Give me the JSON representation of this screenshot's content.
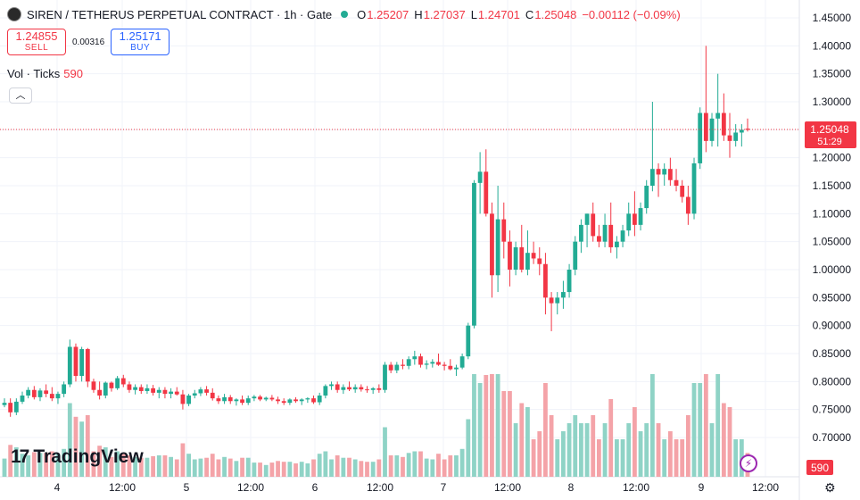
{
  "header": {
    "symbol": "SIREN / TETHERUS PERPETUAL CONTRACT · 1h · Gate",
    "o_label": "O",
    "o": "1.25207",
    "h_label": "H",
    "h": "1.27037",
    "l_label": "L",
    "l": "1.24701",
    "c_label": "C",
    "c": "1.25048",
    "change": "−0.00112 (−0.09%)"
  },
  "trade": {
    "sell_price": "1.24855",
    "sell_label": "SELL",
    "spread": "0.00316",
    "buy_price": "1.25171",
    "buy_label": "BUY"
  },
  "volume_legend": {
    "label": "Vol · Ticks",
    "value": "590"
  },
  "last_price": {
    "price": "1.25048",
    "countdown": "51:29"
  },
  "volume_badge": "590",
  "logo_text": "TradingView",
  "icons": {
    "collapse": "chevron-up-icon",
    "logo": "tradingview-icon",
    "bolt": "lightning-icon",
    "settings": "gear-icon"
  },
  "colors": {
    "up": "#22ab94",
    "down": "#f23645",
    "vol_up": "#8fd3c6",
    "vol_down": "#f4a3a8",
    "grid": "#f0f3fa"
  },
  "chart_data": {
    "type": "candlestick",
    "timeframe": "1h",
    "y_ticks": [
      "1.45000",
      "1.40000",
      "1.35000",
      "1.30000",
      "1.25000",
      "1.20000",
      "1.15000",
      "1.10000",
      "1.05000",
      "1.00000",
      "0.95000",
      "0.90000",
      "0.85000",
      "0.80000",
      "0.75000",
      "0.70000"
    ],
    "ylim": [
      0.67,
      1.47
    ],
    "x_ticks": [
      "4",
      "12:00",
      "5",
      "12:00",
      "6",
      "12:00",
      "7",
      "12:00",
      "8",
      "12:00",
      "9",
      "12:00"
    ],
    "candles": [
      [
        0.758,
        0.77,
        0.754,
        0.762
      ],
      [
        0.762,
        0.77,
        0.737,
        0.745
      ],
      [
        0.745,
        0.77,
        0.74,
        0.764
      ],
      [
        0.764,
        0.782,
        0.76,
        0.775
      ],
      [
        0.775,
        0.79,
        0.77,
        0.785
      ],
      [
        0.785,
        0.792,
        0.768,
        0.772
      ],
      [
        0.772,
        0.788,
        0.765,
        0.784
      ],
      [
        0.784,
        0.795,
        0.772,
        0.778
      ],
      [
        0.778,
        0.79,
        0.765,
        0.77
      ],
      [
        0.77,
        0.782,
        0.76,
        0.778
      ],
      [
        0.778,
        0.8,
        0.772,
        0.795
      ],
      [
        0.795,
        0.875,
        0.79,
        0.862
      ],
      [
        0.862,
        0.868,
        0.8,
        0.81
      ],
      [
        0.81,
        0.862,
        0.8,
        0.858
      ],
      [
        0.858,
        0.86,
        0.79,
        0.8
      ],
      [
        0.8,
        0.805,
        0.78,
        0.785
      ],
      [
        0.785,
        0.8,
        0.768,
        0.775
      ],
      [
        0.775,
        0.8,
        0.77,
        0.798
      ],
      [
        0.798,
        0.8,
        0.782,
        0.788
      ],
      [
        0.788,
        0.81,
        0.785,
        0.806
      ],
      [
        0.806,
        0.812,
        0.79,
        0.795
      ],
      [
        0.795,
        0.8,
        0.78,
        0.785
      ],
      [
        0.785,
        0.795,
        0.777,
        0.79
      ],
      [
        0.79,
        0.795,
        0.778,
        0.783
      ],
      [
        0.783,
        0.795,
        0.778,
        0.788
      ],
      [
        0.788,
        0.794,
        0.775,
        0.78
      ],
      [
        0.78,
        0.79,
        0.77,
        0.785
      ],
      [
        0.785,
        0.79,
        0.77,
        0.778
      ],
      [
        0.778,
        0.788,
        0.77,
        0.782
      ],
      [
        0.782,
        0.79,
        0.775,
        0.777
      ],
      [
        0.777,
        0.785,
        0.75,
        0.76
      ],
      [
        0.76,
        0.778,
        0.756,
        0.775
      ],
      [
        0.775,
        0.785,
        0.77,
        0.779
      ],
      [
        0.779,
        0.79,
        0.774,
        0.786
      ],
      [
        0.786,
        0.792,
        0.775,
        0.78
      ],
      [
        0.78,
        0.788,
        0.766,
        0.77
      ],
      [
        0.77,
        0.775,
        0.76,
        0.765
      ],
      [
        0.765,
        0.778,
        0.76,
        0.772
      ],
      [
        0.772,
        0.776,
        0.76,
        0.765
      ],
      [
        0.765,
        0.77,
        0.757,
        0.768
      ],
      [
        0.768,
        0.775,
        0.758,
        0.762
      ],
      [
        0.762,
        0.775,
        0.758,
        0.77
      ],
      [
        0.77,
        0.776,
        0.765,
        0.773
      ],
      [
        0.773,
        0.776,
        0.765,
        0.768
      ],
      [
        0.768,
        0.773,
        0.765,
        0.771
      ],
      [
        0.771,
        0.776,
        0.765,
        0.768
      ],
      [
        0.768,
        0.773,
        0.76,
        0.765
      ],
      [
        0.765,
        0.77,
        0.758,
        0.762
      ],
      [
        0.762,
        0.77,
        0.758,
        0.768
      ],
      [
        0.768,
        0.772,
        0.762,
        0.765
      ],
      [
        0.765,
        0.77,
        0.758,
        0.768
      ],
      [
        0.768,
        0.772,
        0.762,
        0.77
      ],
      [
        0.77,
        0.775,
        0.76,
        0.763
      ],
      [
        0.763,
        0.78,
        0.758,
        0.775
      ],
      [
        0.775,
        0.795,
        0.77,
        0.792
      ],
      [
        0.792,
        0.8,
        0.785,
        0.795
      ],
      [
        0.795,
        0.8,
        0.78,
        0.785
      ],
      [
        0.785,
        0.795,
        0.778,
        0.79
      ],
      [
        0.79,
        0.8,
        0.783,
        0.786
      ],
      [
        0.786,
        0.795,
        0.78,
        0.79
      ],
      [
        0.79,
        0.795,
        0.782,
        0.786
      ],
      [
        0.786,
        0.792,
        0.78,
        0.785
      ],
      [
        0.785,
        0.79,
        0.778,
        0.788
      ],
      [
        0.788,
        0.795,
        0.78,
        0.785
      ],
      [
        0.785,
        0.835,
        0.78,
        0.83
      ],
      [
        0.83,
        0.835,
        0.815,
        0.82
      ],
      [
        0.82,
        0.835,
        0.815,
        0.83
      ],
      [
        0.83,
        0.84,
        0.822,
        0.828
      ],
      [
        0.828,
        0.845,
        0.822,
        0.84
      ],
      [
        0.84,
        0.855,
        0.83,
        0.845
      ],
      [
        0.845,
        0.85,
        0.825,
        0.83
      ],
      [
        0.83,
        0.838,
        0.822,
        0.832
      ],
      [
        0.832,
        0.84,
        0.825,
        0.835
      ],
      [
        0.835,
        0.85,
        0.828,
        0.83
      ],
      [
        0.83,
        0.835,
        0.82,
        0.828
      ],
      [
        0.828,
        0.84,
        0.82,
        0.822
      ],
      [
        0.822,
        0.83,
        0.81,
        0.825
      ],
      [
        0.825,
        0.85,
        0.822,
        0.845
      ],
      [
        0.845,
        0.905,
        0.84,
        0.9
      ],
      [
        0.9,
        1.16,
        0.895,
        1.155
      ],
      [
        1.155,
        1.21,
        1.1,
        1.175
      ],
      [
        1.175,
        1.215,
        1.095,
        1.1
      ],
      [
        1.1,
        1.12,
        0.95,
        0.99
      ],
      [
        0.99,
        1.15,
        0.96,
        1.09
      ],
      [
        1.09,
        1.12,
        1.02,
        1.05
      ],
      [
        1.05,
        1.07,
        0.97,
        1.0
      ],
      [
        1.0,
        1.05,
        0.99,
        1.04
      ],
      [
        1.04,
        1.08,
        0.995,
        1.0
      ],
      [
        1.0,
        1.07,
        0.99,
        1.03
      ],
      [
        1.03,
        1.05,
        1.01,
        1.02
      ],
      [
        1.02,
        1.04,
        0.99,
        1.01
      ],
      [
        1.01,
        1.03,
        0.92,
        0.95
      ],
      [
        0.95,
        0.96,
        0.89,
        0.94
      ],
      [
        0.94,
        0.96,
        0.92,
        0.95
      ],
      [
        0.95,
        0.98,
        0.93,
        0.96
      ],
      [
        0.96,
        1.01,
        0.95,
        1.0
      ],
      [
        1.0,
        1.06,
        0.99,
        1.05
      ],
      [
        1.05,
        1.09,
        1.03,
        1.08
      ],
      [
        1.08,
        1.1,
        1.04,
        1.1
      ],
      [
        1.1,
        1.12,
        1.05,
        1.06
      ],
      [
        1.06,
        1.08,
        1.04,
        1.05
      ],
      [
        1.05,
        1.1,
        1.04,
        1.08
      ],
      [
        1.08,
        1.12,
        1.03,
        1.04
      ],
      [
        1.04,
        1.06,
        1.02,
        1.05
      ],
      [
        1.05,
        1.08,
        1.04,
        1.07
      ],
      [
        1.07,
        1.12,
        1.06,
        1.1
      ],
      [
        1.1,
        1.14,
        1.06,
        1.08
      ],
      [
        1.08,
        1.12,
        1.07,
        1.11
      ],
      [
        1.11,
        1.16,
        1.1,
        1.15
      ],
      [
        1.15,
        1.3,
        1.14,
        1.18
      ],
      [
        1.18,
        1.19,
        1.13,
        1.17
      ],
      [
        1.17,
        1.19,
        1.15,
        1.18
      ],
      [
        1.18,
        1.2,
        1.15,
        1.16
      ],
      [
        1.16,
        1.18,
        1.14,
        1.15
      ],
      [
        1.15,
        1.16,
        1.12,
        1.13
      ],
      [
        1.13,
        1.15,
        1.08,
        1.1
      ],
      [
        1.1,
        1.2,
        1.09,
        1.19
      ],
      [
        1.19,
        1.29,
        1.18,
        1.28
      ],
      [
        1.28,
        1.4,
        1.21,
        1.23
      ],
      [
        1.23,
        1.28,
        1.22,
        1.27
      ],
      [
        1.27,
        1.35,
        1.22,
        1.28
      ],
      [
        1.28,
        1.315,
        1.23,
        1.24
      ],
      [
        1.24,
        1.28,
        1.2,
        1.23
      ],
      [
        1.23,
        1.26,
        1.22,
        1.245
      ],
      [
        1.245,
        1.26,
        1.22,
        1.25
      ],
      [
        1.252,
        1.27,
        1.247,
        1.25
      ]
    ],
    "volume_last": 590
  }
}
